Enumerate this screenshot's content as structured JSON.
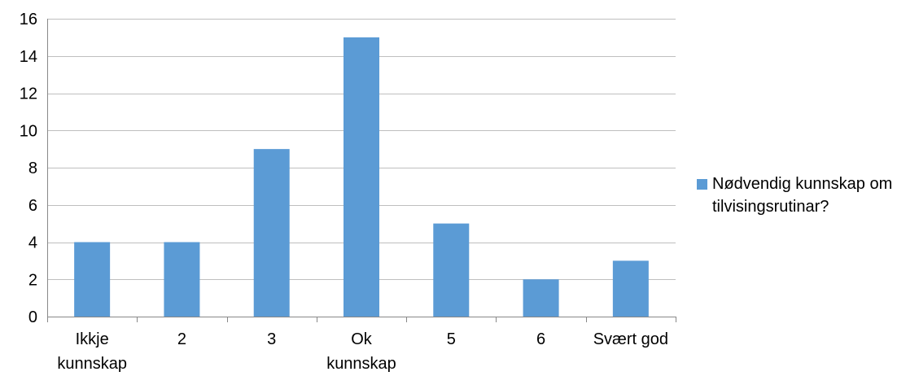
{
  "chart_data": {
    "type": "bar",
    "categories": [
      [
        "Ikkje",
        "kunnskap"
      ],
      [
        "2"
      ],
      [
        "3"
      ],
      [
        "Ok",
        "kunnskap"
      ],
      [
        "5"
      ],
      [
        "6"
      ],
      [
        "Svært god"
      ]
    ],
    "series": [
      {
        "name": "Nødvendig kunnskap om tilvisingsrutinar?",
        "values": [
          4,
          4,
          9,
          15,
          5,
          2,
          3
        ],
        "color": "#5b9bd5"
      }
    ],
    "ylim": [
      0,
      16
    ],
    "yticks": [
      0,
      2,
      4,
      6,
      8,
      10,
      12,
      14,
      16
    ],
    "grid": true,
    "legend_position": "right"
  }
}
